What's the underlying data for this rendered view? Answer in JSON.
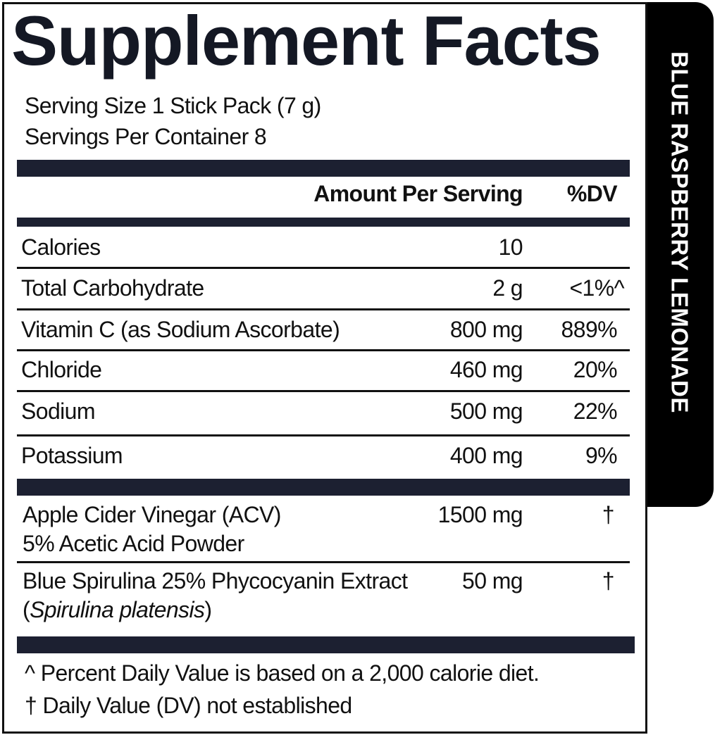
{
  "title": "Supplement Facts",
  "flavor": "BLUE RASPBERRY LEMONADE",
  "serving_size": "Serving Size 1 Stick Pack (7 g)",
  "servings_per_container": "Servings Per Container 8",
  "header": {
    "amount": "Amount Per Serving",
    "dv": "%DV"
  },
  "rows": [
    {
      "name": "Calories",
      "amount": "10",
      "dv": ""
    },
    {
      "name": "Total Carbohydrate",
      "amount": "2 g",
      "dv": "<1%^"
    },
    {
      "name": "Vitamin C (as Sodium Ascorbate)",
      "amount": "800 mg",
      "dv": "889%"
    },
    {
      "name": "Chloride",
      "amount": "460 mg",
      "dv": "20%"
    },
    {
      "name": "Sodium",
      "amount": "500 mg",
      "dv": "22%"
    },
    {
      "name": "Potassium",
      "amount": "400 mg",
      "dv": "9%"
    }
  ],
  "other": [
    {
      "line1": "Apple Cider Vinegar (ACV)",
      "line2": "5% Acetic Acid Powder",
      "amount": "1500 mg",
      "dv": "†"
    },
    {
      "line1": "Blue Spirulina 25% Phycocyanin Extract",
      "line2_pre": "(",
      "line2_italic": "Spirulina platensis",
      "line2_post": ")",
      "amount": "50 mg",
      "dv": "†"
    }
  ],
  "footnotes": [
    "^ Percent Daily Value is based on a 2,000 calorie diet.",
    "† Daily Value (DV) not established"
  ],
  "colors": {
    "bar": "#1c2031",
    "tab": "#000000",
    "text": "#111111"
  }
}
